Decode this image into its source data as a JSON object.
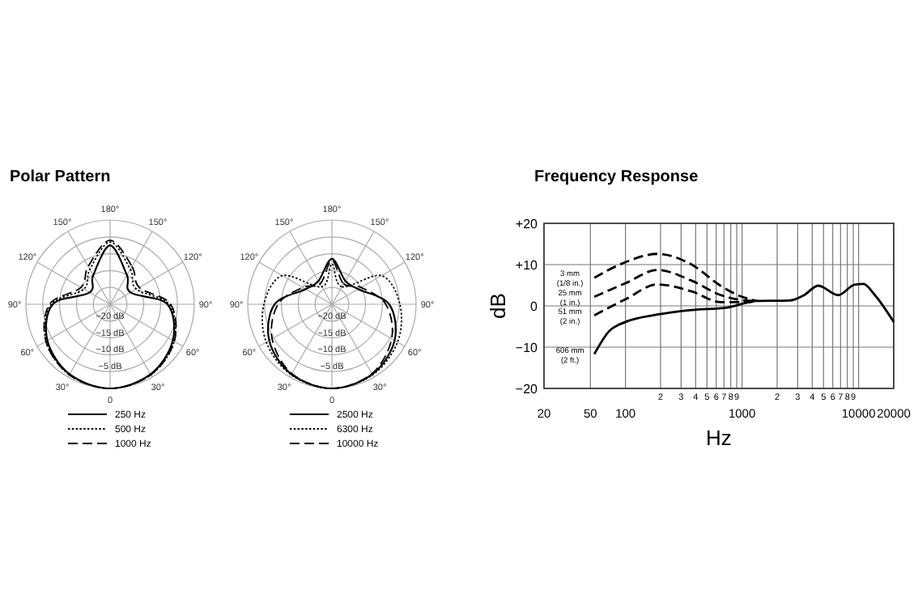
{
  "chart_data": [
    {
      "type": "radar",
      "title": "Polar Pattern",
      "categories": [
        "180°",
        "150°",
        "120°",
        "90°",
        "60°",
        "30°",
        "0",
        "30°",
        "60°",
        "90°",
        "120°",
        "150°"
      ],
      "ylim": [
        -25,
        0
      ],
      "yticks": [
        {
          "value": -20,
          "label": "−20 dB"
        },
        {
          "value": -15,
          "label": "−15 dB"
        },
        {
          "value": -10,
          "label": "−10 dB"
        },
        {
          "value": -5,
          "label": "−5 dB"
        }
      ],
      "grid": true,
      "legend": "bottom",
      "series": [
        {
          "name": "250 Hz",
          "color": "#000000",
          "line_style": "solid",
          "values": [
            -7.5,
            -15,
            -18,
            -8,
            -3.5,
            -1,
            0,
            -1,
            -3.5,
            -8,
            -18,
            -15
          ]
        },
        {
          "name": "500 Hz",
          "color": "#000000",
          "line_style": "dotted",
          "values": [
            -6.5,
            -13,
            -16,
            -7.5,
            -3,
            -0.8,
            0,
            -0.8,
            -3,
            -7.5,
            -16,
            -13
          ]
        },
        {
          "name": "1000 Hz",
          "color": "#000000",
          "line_style": "dashed",
          "values": [
            -6,
            -12,
            -15,
            -7,
            -3,
            -0.8,
            0,
            -0.8,
            -3,
            -7,
            -15,
            -12
          ]
        }
      ]
    },
    {
      "type": "radar",
      "categories": [
        "180°",
        "150°",
        "120°",
        "90°",
        "60°",
        "30°",
        "0",
        "30°",
        "60°",
        "90°",
        "120°",
        "150°"
      ],
      "ylim": [
        -25,
        0
      ],
      "yticks": [
        {
          "value": -20,
          "label": "−20 dB"
        },
        {
          "value": -15,
          "label": "−15 dB"
        },
        {
          "value": -10,
          "label": "−10 dB"
        },
        {
          "value": -5,
          "label": "−5 dB"
        }
      ],
      "grid": true,
      "legend": "bottom",
      "series": [
        {
          "name": "2500 Hz",
          "color": "#000000",
          "line_style": "solid",
          "values": [
            -11.5,
            -17,
            -16,
            -8,
            -3.5,
            -1,
            0,
            -1,
            -3.5,
            -8,
            -16,
            -17
          ]
        },
        {
          "name": "6300 Hz",
          "color": "#000000",
          "line_style": "dotted",
          "values": [
            -13,
            -19,
            -8,
            -4.8,
            -2.5,
            -0.8,
            0,
            -0.8,
            -2.5,
            -4.8,
            -8,
            -19
          ]
        },
        {
          "name": "10000 Hz",
          "color": "#000000",
          "line_style": "dashed",
          "values": [
            -12,
            -18,
            -15,
            -9,
            -4.5,
            -1.2,
            0,
            -1.2,
            -4.5,
            -9,
            -15,
            -18
          ]
        }
      ]
    },
    {
      "type": "line",
      "title": "Frequency Response",
      "xlabel": "Hz",
      "ylabel": "dB",
      "log": "x",
      "grid": true,
      "xlim": [
        20,
        20000
      ],
      "xticks": [
        20,
        50,
        100,
        {
          "value": 200,
          "label": null
        },
        {
          "value": 300,
          "label": null
        },
        {
          "value": 400,
          "label": null
        },
        {
          "value": 500,
          "label": null
        },
        {
          "value": 600,
          "label": null
        },
        {
          "value": 700,
          "label": null
        },
        {
          "value": 800,
          "label": null
        },
        {
          "value": 900,
          "label": null
        },
        1000,
        {
          "value": 2000,
          "label": null
        },
        {
          "value": 3000,
          "label": null
        },
        {
          "value": 4000,
          "label": null
        },
        {
          "value": 5000,
          "label": null
        },
        {
          "value": 6000,
          "label": null
        },
        {
          "value": 7000,
          "label": null
        },
        {
          "value": 8000,
          "label": null
        },
        {
          "value": 9000,
          "label": null
        },
        10000,
        20000
      ],
      "ylim": [
        -20,
        20
      ],
      "yticks": [
        {
          "value": -20,
          "label": "−20"
        },
        {
          "value": -10,
          "label": "−10"
        },
        0,
        {
          "value": 10,
          "label": "+10"
        },
        {
          "value": 20,
          "label": "+20"
        }
      ],
      "annotations": [
        "2",
        "3",
        "4",
        "5",
        "6",
        "7",
        "8",
        "9",
        "2",
        "3",
        "4",
        "5",
        "6",
        "7",
        "8",
        "9"
      ],
      "series": [
        {
          "name": "3 mm (1/8 in.)",
          "color": "#000000",
          "line_style": "dashed",
          "x": [
            54,
            100,
            188,
            370,
            660,
            1000,
            1340
          ],
          "values": [
            6.8,
            10.6,
            12.6,
            10,
            4.8,
            2.2,
            1.2
          ]
        },
        {
          "name": "25 mm (1 in.)",
          "color": "#000000",
          "line_style": "dashed",
          "x": [
            54,
            100,
            188,
            370,
            660,
            1080,
            1340
          ],
          "values": [
            2.2,
            5.5,
            8.7,
            6.1,
            2.6,
            1.3,
            1.2
          ]
        },
        {
          "name": "51 mm (2 in.)",
          "color": "#000000",
          "line_style": "dashed",
          "x": [
            54,
            100,
            188,
            370,
            660,
            1080,
            1340
          ],
          "values": [
            -2.3,
            1.6,
            5.2,
            3.5,
            0.9,
            0.9,
            1.2
          ]
        },
        {
          "name": "606 mm (2 ft.)",
          "color": "#000000",
          "line_style": "solid",
          "x": [
            54,
            72,
            100,
            188,
            370,
            745,
            1340,
            2540,
            3400,
            4500,
            6700,
            9200,
            11000,
            13800,
            20000
          ],
          "values": [
            -11.7,
            -6.2,
            -3.9,
            -2.1,
            -1,
            -0.4,
            1.2,
            1.3,
            2.6,
            4.9,
            2.6,
            5.1,
            5.3,
            2.6,
            -3.9
          ]
        }
      ]
    }
  ]
}
